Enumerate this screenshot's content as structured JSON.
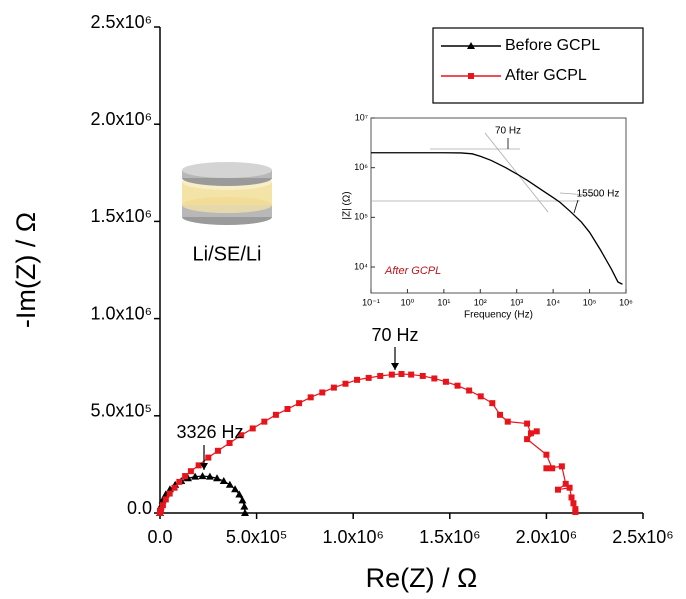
{
  "chart_data": [
    {
      "type": "line",
      "xlabel": "Re(Z) / Ω",
      "ylabel": "-Im(Z) / Ω",
      "xlim": [
        0,
        2500000
      ],
      "ylim": [
        0,
        2500000
      ],
      "xticks": [
        {
          "value": 0,
          "label": "0.0"
        },
        {
          "value": 500000,
          "label": "5.0x10⁵"
        },
        {
          "value": 1000000,
          "label": "1.0x10⁶"
        },
        {
          "value": 1500000,
          "label": "1.5x10⁶"
        },
        {
          "value": 2000000,
          "label": "2.0x10⁶"
        },
        {
          "value": 2500000,
          "label": "2.5x10⁶"
        }
      ],
      "yticks": [
        {
          "value": 0,
          "label": "0.0"
        },
        {
          "value": 500000,
          "label": "5.0x10⁵"
        },
        {
          "value": 1000000,
          "label": "1.0x10⁶"
        },
        {
          "value": 1500000,
          "label": "1.5x10⁶"
        },
        {
          "value": 2000000,
          "label": "2.0x10⁶"
        },
        {
          "value": 2500000,
          "label": "2.5x10⁶"
        }
      ],
      "legend": "top-right",
      "series": [
        {
          "name": "Before GCPL",
          "color": "#000000",
          "marker": "triangle",
          "x": [
            0,
            3300,
            13200,
            29500,
            51500,
            78500,
            110000,
            144800,
            181700,
            220000,
            258300,
            295200,
            330000,
            361500,
            388500,
            410500,
            426800,
            436700,
            440000
          ],
          "values": [
            0,
            33060,
            64980,
            95000,
            122170,
            145540,
            164540,
            178600,
            187150,
            190000,
            187150,
            178600,
            164540,
            145540,
            122170,
            95000,
            64980,
            33060,
            0
          ]
        },
        {
          "name": "After GCPL",
          "color": "#e8141b",
          "marker": "square",
          "x": [
            0,
            5000,
            15000,
            30000,
            50000,
            75000,
            100000,
            130000,
            160000,
            200000,
            250000,
            300000,
            360000,
            420000,
            480000,
            540000,
            600000,
            660000,
            720000,
            780000,
            840000,
            900000,
            960000,
            1020000,
            1080000,
            1140000,
            1200000,
            1250000,
            1300000,
            1360000,
            1420000,
            1480000,
            1540000,
            1600000,
            1660000,
            1720000,
            1760000,
            1800000,
            1900000,
            1920000,
            1950000,
            1900000,
            2000000,
            2030000,
            2000000,
            2080000,
            2100000,
            2060000,
            2120000,
            2130000,
            2140000,
            2150000,
            2150000
          ],
          "values": [
            0,
            15000,
            40000,
            70000,
            100000,
            130000,
            160000,
            190000,
            215000,
            245000,
            285000,
            320000,
            360000,
            400000,
            435000,
            470000,
            505000,
            535000,
            565000,
            595000,
            620000,
            645000,
            665000,
            685000,
            695000,
            705000,
            712000,
            715000,
            712000,
            705000,
            692000,
            675000,
            655000,
            630000,
            600000,
            565000,
            505000,
            470000,
            460000,
            410000,
            420000,
            380000,
            300000,
            230000,
            230000,
            240000,
            150000,
            120000,
            130000,
            80000,
            50000,
            20000,
            5000
          ]
        }
      ],
      "annotations": [
        {
          "text": "70 Hz"
        },
        {
          "text": "3326 Hz"
        },
        {
          "text": "Li/SE/Li"
        }
      ]
    },
    {
      "type": "line",
      "xlabel": "Frequency (Hz)",
      "ylabel": "|Z| (Ω)",
      "xscale": "log",
      "yscale": "log",
      "xlim": [
        0.1,
        1000000
      ],
      "ylim": [
        3000,
        10000000
      ],
      "xticks": [
        {
          "value": 0.1,
          "label": "10⁻¹"
        },
        {
          "value": 1,
          "label": "10⁰"
        },
        {
          "value": 10,
          "label": "10¹"
        },
        {
          "value": 100,
          "label": "10²"
        },
        {
          "value": 1000,
          "label": "10³"
        },
        {
          "value": 10000,
          "label": "10⁴"
        },
        {
          "value": 100000,
          "label": "10⁵"
        },
        {
          "value": 1000000,
          "label": "10⁶"
        }
      ],
      "yticks": [
        {
          "value": 10000,
          "label": "10⁴"
        },
        {
          "value": 100000,
          "label": "10⁵"
        },
        {
          "value": 1000000,
          "label": "10⁶"
        },
        {
          "value": 10000000,
          "label": "10⁷"
        }
      ],
      "series": [
        {
          "color": "#000000",
          "x": [
            0.1,
            0.3,
            1,
            3,
            10,
            30,
            60,
            100,
            200,
            500,
            1000,
            2000,
            5000,
            10000,
            15500,
            30000,
            60000,
            100000,
            200000,
            400000,
            600000,
            800000
          ],
          "values": [
            2000000,
            2000000,
            2000000,
            2000000,
            2000000,
            1980000,
            1900000,
            1700000,
            1400000,
            1000000,
            750000,
            550000,
            350000,
            250000,
            200000,
            130000,
            80000,
            50000,
            22000,
            9000,
            5000,
            4500
          ]
        }
      ],
      "annotations": [
        {
          "text": "70 Hz"
        },
        {
          "text": "15500 Hz"
        },
        {
          "text": "After GCPL",
          "color": "#c0141b"
        }
      ]
    }
  ]
}
